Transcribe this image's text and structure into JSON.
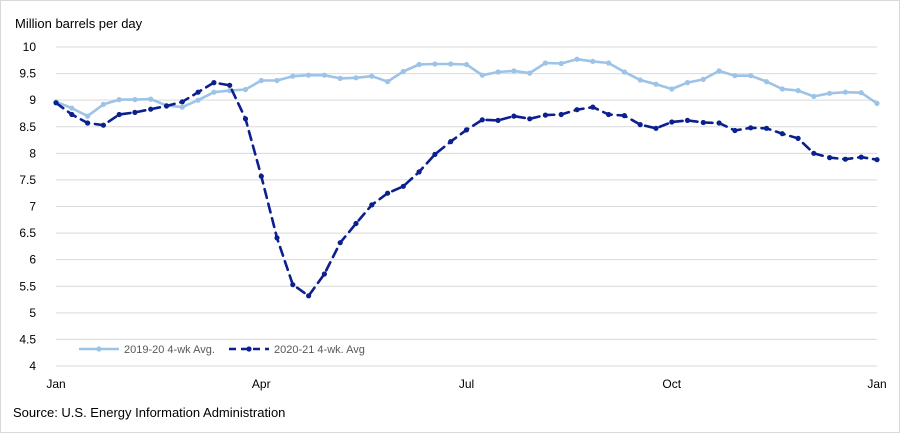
{
  "chart_data": {
    "type": "line",
    "title": "",
    "ylabel": "Million barrels per day",
    "xlabel": "",
    "ylim": [
      4,
      10
    ],
    "yticks": [
      4,
      4.5,
      5,
      5.5,
      6,
      6.5,
      7,
      7.5,
      8,
      8.5,
      9,
      9.5,
      10
    ],
    "x_week_range": [
      0,
      52
    ],
    "xticks": [
      {
        "label": "Jan",
        "week": 0
      },
      {
        "label": "Apr",
        "week": 13
      },
      {
        "label": "Jul",
        "week": 26
      },
      {
        "label": "Oct",
        "week": 39
      },
      {
        "label": "Jan",
        "week": 52
      }
    ],
    "grid": true,
    "legend": "bottom-left",
    "source": "Source: U.S. Energy Information Administration",
    "series": [
      {
        "name": "2019-20 4-wk Avg.",
        "color": "#9dc3e6",
        "style": "solid",
        "values": [
          8.97,
          8.85,
          8.7,
          8.92,
          9.01,
          9.01,
          9.02,
          8.9,
          8.87,
          9.0,
          9.15,
          9.18,
          9.2,
          9.37,
          9.37,
          9.45,
          9.47,
          9.47,
          9.41,
          9.42,
          9.45,
          9.35,
          9.54,
          9.67,
          9.68,
          9.68,
          9.67,
          9.47,
          9.53,
          9.55,
          9.51,
          9.7,
          9.69,
          9.77,
          9.73,
          9.7,
          9.53,
          9.38,
          9.3,
          9.21,
          9.33,
          9.39,
          9.55,
          9.46,
          9.46,
          9.35,
          9.21,
          9.18,
          9.07,
          9.13,
          9.15,
          9.14,
          8.94
        ]
      },
      {
        "name": "2020-21 4-wk. Avg",
        "color": "#0b1f8f",
        "style": "dashed",
        "values": [
          8.95,
          8.73,
          8.57,
          8.53,
          8.73,
          8.77,
          8.83,
          8.89,
          8.97,
          9.15,
          9.33,
          9.28,
          8.65,
          7.57,
          6.41,
          5.53,
          5.32,
          5.73,
          6.32,
          6.68,
          7.03,
          7.25,
          7.38,
          7.65,
          7.98,
          8.22,
          8.44,
          8.63,
          8.62,
          8.7,
          8.65,
          8.72,
          8.73,
          8.82,
          8.87,
          8.73,
          8.71,
          8.54,
          8.47,
          8.59,
          8.62,
          8.58,
          8.57,
          8.43,
          8.48,
          8.47,
          8.37,
          8.28,
          8.0,
          7.92,
          7.89,
          7.93,
          7.88
        ]
      }
    ]
  }
}
